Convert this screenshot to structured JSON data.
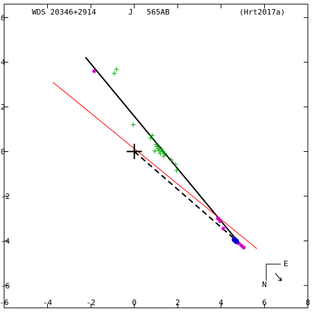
{
  "chart_data": {
    "type": "scatter",
    "header": {
      "wds_id": "WDS 20346+2914",
      "component": "J   565AB",
      "reference": "(Hrt2017a)"
    },
    "xlim": [
      -6,
      8
    ],
    "ylim": [
      -7,
      6.6
    ],
    "x_ticks": [
      -6,
      -4,
      -2,
      0,
      2,
      4,
      6,
      8
    ],
    "x_tick_labels": [
      "-6",
      "-4",
      "-2",
      "0",
      "2",
      "4",
      "6",
      "8"
    ],
    "y_ticks": [
      6,
      4,
      2,
      0,
      -2,
      -4,
      -6
    ],
    "y_tick_labels": [
      "6",
      "4",
      "2",
      "0",
      "-2",
      "-4",
      "-6"
    ],
    "grid": false,
    "legend": "none",
    "compass": {
      "east_label": "E",
      "north_label": "N"
    },
    "primary_marker": {
      "x": 0,
      "y": 0
    },
    "series": [
      {
        "marker": "plus",
        "color": "#00aa00",
        "points": [
          [
            -0.82,
            3.68
          ],
          [
            -0.92,
            3.5
          ],
          [
            -0.05,
            1.2
          ],
          [
            0.82,
            0.72
          ],
          [
            0.75,
            0.6
          ],
          [
            1.0,
            0.32
          ],
          [
            1.05,
            0.22
          ],
          [
            1.1,
            0.12
          ],
          [
            1.25,
            0.12
          ],
          [
            0.95,
            0.02
          ],
          [
            1.2,
            -0.08
          ],
          [
            1.4,
            -0.1
          ],
          [
            1.35,
            -0.2
          ],
          [
            1.7,
            -0.38
          ],
          [
            1.9,
            -0.58
          ],
          [
            1.95,
            -0.85
          ],
          [
            1.15,
            0.05
          ],
          [
            1.3,
            0.0
          ]
        ]
      },
      {
        "marker": "asterisk",
        "color": "#cc00cc",
        "points": [
          [
            -1.85,
            3.6
          ],
          [
            3.85,
            -3.0
          ],
          [
            3.95,
            -3.12
          ],
          [
            4.1,
            -3.45
          ],
          [
            4.6,
            -3.9
          ],
          [
            4.7,
            -4.0
          ],
          [
            4.75,
            -4.05
          ],
          [
            4.82,
            -4.12
          ],
          [
            4.95,
            -4.22
          ],
          [
            5.05,
            -4.3
          ]
        ]
      },
      {
        "marker": "dot",
        "color": "#0000cc",
        "points": [
          [
            4.62,
            -3.95
          ],
          [
            4.7,
            -4.02
          ]
        ]
      }
    ],
    "lines": [
      {
        "style": "solid",
        "color": "#000000",
        "from": [
          -2.25,
          4.22
        ],
        "to": [
          5.05,
          -4.35
        ]
      },
      {
        "style": "dashed",
        "color": "#000000",
        "from": [
          0.0,
          0.0
        ],
        "to": [
          4.72,
          -4.0
        ]
      },
      {
        "style": "solid",
        "color": "#ff0000",
        "from": [
          -3.75,
          3.1
        ],
        "to": [
          5.65,
          -4.35
        ]
      }
    ]
  }
}
